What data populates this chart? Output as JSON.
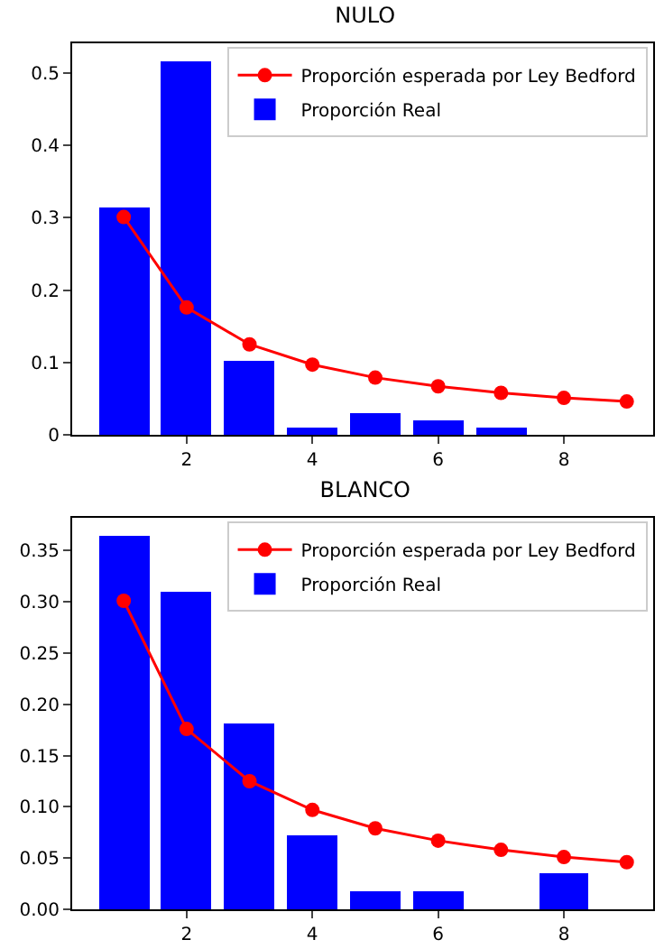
{
  "chart_data": [
    {
      "type": "bar",
      "title": "NULO",
      "x": [
        1,
        2,
        3,
        4,
        5,
        6,
        7,
        8,
        9
      ],
      "xlim": [
        0.18,
        9.42
      ],
      "xticks": [
        2,
        4,
        6,
        8
      ],
      "ylim": [
        0,
        0.541
      ],
      "yticks": [
        0,
        0.1,
        0.2,
        0.3,
        0.4,
        0.5
      ],
      "grid": false,
      "legend": "top right",
      "series": [
        {
          "name": "Proporción esperada por Ley Bedford",
          "type": "line",
          "color": "#ff0000",
          "marker": "circle",
          "values": [
            0.301,
            0.176,
            0.125,
            0.097,
            0.079,
            0.067,
            0.058,
            0.051,
            0.046
          ]
        },
        {
          "name": "Proporción Real",
          "color": "#0000ff",
          "values": [
            0.314,
            0.517,
            0.103,
            0.011,
            0.031,
            0.021,
            0.011,
            0,
            0
          ]
        }
      ]
    },
    {
      "type": "bar",
      "title": "BLANCO",
      "x": [
        1,
        2,
        3,
        4,
        5,
        6,
        7,
        8,
        9
      ],
      "xlim": [
        0.18,
        9.42
      ],
      "xticks": [
        2,
        4,
        6,
        8
      ],
      "ylim": [
        0,
        0.382
      ],
      "yticks": [
        {
          "value": 0,
          "label": "0.00"
        },
        {
          "value": 0.05,
          "label": "0.05"
        },
        {
          "value": 0.1,
          "label": "0.10"
        },
        {
          "value": 0.15,
          "label": "0.15"
        },
        {
          "value": 0.2,
          "label": "0.20"
        },
        {
          "value": 0.25,
          "label": "0.25"
        },
        {
          "value": 0.3,
          "label": "0.30"
        },
        {
          "value": 0.35,
          "label": "0.35"
        }
      ],
      "grid": false,
      "legend": "top right",
      "series": [
        {
          "name": "Proporción esperada por Ley Bedford",
          "type": "line",
          "color": "#ff0000",
          "marker": "circle",
          "values": [
            0.301,
            0.176,
            0.125,
            0.097,
            0.079,
            0.067,
            0.058,
            0.051,
            0.046
          ]
        },
        {
          "name": "Proporción Real",
          "color": "#0000ff",
          "values": [
            0.364,
            0.309,
            0.182,
            0.073,
            0.018,
            0.018,
            0,
            0.036,
            0
          ]
        }
      ]
    }
  ]
}
